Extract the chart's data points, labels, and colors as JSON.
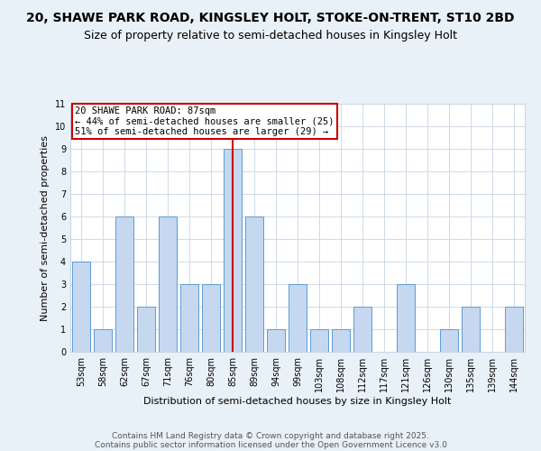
{
  "title1": "20, SHAWE PARK ROAD, KINGSLEY HOLT, STOKE-ON-TRENT, ST10 2BD",
  "title2": "Size of property relative to semi-detached houses in Kingsley Holt",
  "xlabel": "Distribution of semi-detached houses by size in Kingsley Holt",
  "ylabel": "Number of semi-detached properties",
  "categories": [
    "53sqm",
    "58sqm",
    "62sqm",
    "67sqm",
    "71sqm",
    "76sqm",
    "80sqm",
    "85sqm",
    "89sqm",
    "94sqm",
    "99sqm",
    "103sqm",
    "108sqm",
    "112sqm",
    "117sqm",
    "121sqm",
    "126sqm",
    "130sqm",
    "135sqm",
    "139sqm",
    "144sqm"
  ],
  "values": [
    4,
    1,
    6,
    2,
    6,
    3,
    3,
    9,
    6,
    1,
    3,
    1,
    1,
    2,
    0,
    3,
    0,
    1,
    2,
    0,
    2
  ],
  "bar_color": "#c5d8f0",
  "bar_edge_color": "#5b9bd5",
  "vline_index": 7,
  "vline_color": "#cc0000",
  "annotation_title": "20 SHAWE PARK ROAD: 87sqm",
  "annotation_line1": "← 44% of semi-detached houses are smaller (25)",
  "annotation_line2": "51% of semi-detached houses are larger (29) →",
  "annotation_box_edge": "#cc0000",
  "ylim": [
    0,
    11
  ],
  "yticks": [
    0,
    1,
    2,
    3,
    4,
    5,
    6,
    7,
    8,
    9,
    10,
    11
  ],
  "footnote1": "Contains HM Land Registry data © Crown copyright and database right 2025.",
  "footnote2": "Contains public sector information licensed under the Open Government Licence v3.0",
  "background_color": "#e8f0f8",
  "plot_background": "#ffffff",
  "title_fontsize": 10,
  "subtitle_fontsize": 9,
  "axis_label_fontsize": 8,
  "tick_fontsize": 7,
  "annotation_fontsize": 7.5,
  "footnote_fontsize": 6.5
}
